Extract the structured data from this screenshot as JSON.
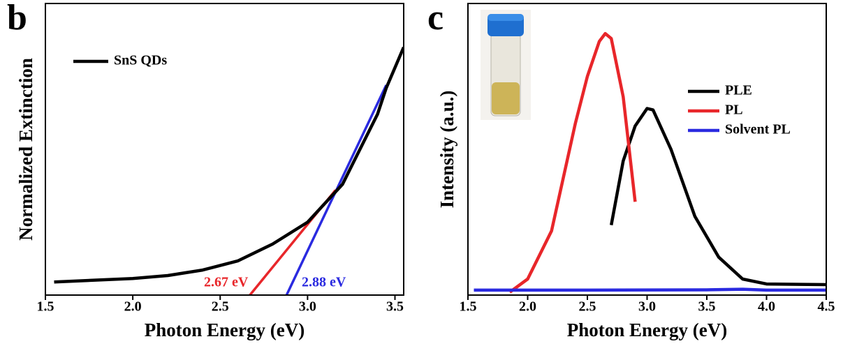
{
  "chart_data": [
    {
      "type": "line",
      "panel_label": "b",
      "xlabel": "Photon Energy (eV)",
      "ylabel": "Normalized Extinction",
      "xlim": [
        1.5,
        3.55
      ],
      "ylim": [
        0,
        1
      ],
      "xticks": [
        1.5,
        {
          "value": 2,
          "label": "2.0"
        },
        2.5,
        {
          "value": 3,
          "label": "3.0"
        },
        3.5
      ],
      "legend": "upper left",
      "series": [
        {
          "name": "SnS QDs",
          "color": "#000000",
          "x": [
            1.55,
            2.0,
            2.2,
            2.4,
            2.6,
            2.8,
            3.0,
            3.2,
            3.3,
            3.4,
            3.45,
            3.5,
            3.55
          ],
          "values": [
            0.045,
            0.057,
            0.067,
            0.086,
            0.117,
            0.175,
            0.25,
            0.38,
            0.5,
            0.62,
            0.71,
            0.78,
            0.85
          ]
        }
      ],
      "tangents": [
        {
          "label": "2.67 eV",
          "color": "#e8262a",
          "x": [
            2.67,
            3.16
          ],
          "values": [
            0,
            0.36
          ]
        },
        {
          "label": "2.88 eV",
          "color": "#2a2ae0",
          "x": [
            2.88,
            3.45
          ],
          "values": [
            0,
            0.72
          ]
        }
      ]
    },
    {
      "type": "line",
      "panel_label": "c",
      "xlabel": "Photon Energy (eV)",
      "ylabel": "Intensity (a.u.)",
      "xlim": [
        1.5,
        4.5
      ],
      "ylim": [
        0,
        1
      ],
      "xticks": [
        1.5,
        {
          "value": 2,
          "label": "2.0"
        },
        2.5,
        {
          "value": 3,
          "label": "3.0"
        },
        3.5,
        {
          "value": 4,
          "label": "4.0"
        },
        4.5
      ],
      "legend": "upper right",
      "series": [
        {
          "name": "PLE",
          "color": "#000000",
          "x": [
            2.7,
            2.8,
            2.9,
            3.0,
            3.05,
            3.2,
            3.4,
            3.6,
            3.8,
            4.0,
            4.5
          ],
          "values": [
            0.24,
            0.46,
            0.58,
            0.64,
            0.635,
            0.5,
            0.27,
            0.13,
            0.055,
            0.038,
            0.036
          ]
        },
        {
          "name": "PL",
          "color": "#e8262a",
          "x": [
            1.85,
            2.0,
            2.2,
            2.4,
            2.5,
            2.6,
            2.65,
            2.7,
            2.8,
            2.9
          ],
          "values": [
            0.01,
            0.055,
            0.22,
            0.59,
            0.75,
            0.87,
            0.897,
            0.88,
            0.68,
            0.32
          ]
        },
        {
          "name": "Solvent PL",
          "color": "#2a2ae0",
          "x": [
            1.55,
            2.5,
            3.5,
            3.8,
            4.0,
            4.5
          ],
          "values": [
            0.017,
            0.017,
            0.018,
            0.02,
            0.017,
            0.017
          ]
        }
      ]
    }
  ]
}
